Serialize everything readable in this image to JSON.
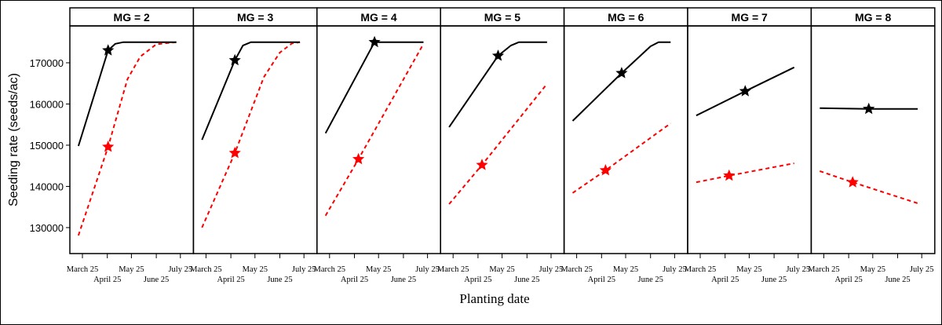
{
  "chart_data": {
    "type": "line",
    "ylabel": "Seeding rate (seeds/ac)",
    "xlabel": "Planting date",
    "ylim": [
      123700,
      178950
    ],
    "yticks": [
      130000,
      140000,
      150000,
      160000,
      170000
    ],
    "ytick_labels": [
      "130000",
      "140000",
      "150000",
      "160000",
      "170000"
    ],
    "xticks": [
      "03-25",
      "04-25",
      "05-25",
      "06-25",
      "07-25"
    ],
    "xtick_labels": [
      "March 25",
      "April 25",
      "May 25",
      "June 25",
      "July 25"
    ],
    "grid": false,
    "colors": {
      "black_series": "#000000",
      "red_series": "#ff0000"
    },
    "panels": [
      {
        "title": "MG = 2",
        "black": {
          "points": [
            [
              "03-20",
              149800
            ],
            [
              "04-26",
              173000
            ],
            [
              "05-05",
              174600
            ],
            [
              "05-15",
              175000
            ],
            [
              "07-20",
              175000
            ]
          ],
          "star": [
            "04-26",
            173000
          ]
        },
        "red": {
          "points": [
            [
              "03-20",
              128100
            ],
            [
              "04-26",
              149600
            ],
            [
              "05-20",
              166000
            ],
            [
              "06-05",
              171500
            ],
            [
              "06-25",
              174500
            ],
            [
              "07-20",
              175000
            ]
          ],
          "star": [
            "04-26",
            149600
          ]
        }
      },
      {
        "title": "MG = 3",
        "black": {
          "points": [
            [
              "03-20",
              151300
            ],
            [
              "04-30",
              170600
            ],
            [
              "05-10",
              174200
            ],
            [
              "05-20",
              175000
            ],
            [
              "07-20",
              175000
            ]
          ],
          "star": [
            "04-30",
            170600
          ]
        },
        "red": {
          "points": [
            [
              "03-20",
              130000
            ],
            [
              "04-30",
              148100
            ],
            [
              "06-05",
              166500
            ],
            [
              "06-25",
              172500
            ],
            [
              "07-10",
              174700
            ],
            [
              "07-20",
              175000
            ]
          ],
          "star": [
            "04-30",
            148100
          ]
        }
      },
      {
        "title": "MG = 4",
        "black": {
          "points": [
            [
              "03-20",
              152900
            ],
            [
              "05-20",
              175000
            ],
            [
              "07-20",
              175000
            ]
          ],
          "star": [
            "05-20",
            175000
          ]
        },
        "red": {
          "points": [
            [
              "03-20",
              132900
            ],
            [
              "04-30",
              146600
            ],
            [
              "07-20",
              174600
            ]
          ],
          "star": [
            "04-30",
            146600
          ]
        }
      },
      {
        "title": "MG = 5",
        "black": {
          "points": [
            [
              "03-20",
              154400
            ],
            [
              "05-20",
              171700
            ],
            [
              "06-05",
              174200
            ],
            [
              "06-15",
              175000
            ],
            [
              "07-20",
              175000
            ]
          ],
          "star": [
            "05-20",
            171700
          ]
        },
        "red": {
          "points": [
            [
              "03-20",
              135700
            ],
            [
              "04-30",
              145200
            ],
            [
              "07-20",
              164900
            ]
          ],
          "star": [
            "04-30",
            145200
          ]
        }
      },
      {
        "title": "MG = 6",
        "black": {
          "points": [
            [
              "03-20",
              155900
            ],
            [
              "05-20",
              167500
            ],
            [
              "06-25",
              174000
            ],
            [
              "07-05",
              175000
            ],
            [
              "07-20",
              175000
            ]
          ],
          "star": [
            "05-20",
            167500
          ]
        },
        "red": {
          "points": [
            [
              "03-20",
              138400
            ],
            [
              "04-30",
              143900
            ],
            [
              "07-20",
              155300
            ]
          ],
          "star": [
            "04-30",
            143900
          ]
        }
      },
      {
        "title": "MG = 7",
        "black": {
          "points": [
            [
              "03-20",
              157200
            ],
            [
              "05-20",
              163100
            ],
            [
              "07-20",
              168900
            ]
          ],
          "star": [
            "05-20",
            163100
          ]
        },
        "red": {
          "points": [
            [
              "03-20",
              141000
            ],
            [
              "04-30",
              142600
            ],
            [
              "07-20",
              145600
            ]
          ],
          "star": [
            "04-30",
            142600
          ]
        }
      },
      {
        "title": "MG = 8",
        "black": {
          "points": [
            [
              "03-20",
              159000
            ],
            [
              "05-20",
              158800
            ],
            [
              "07-20",
              158800
            ]
          ],
          "star": [
            "05-20",
            158800
          ]
        },
        "red": {
          "points": [
            [
              "03-20",
              143700
            ],
            [
              "04-30",
              141000
            ],
            [
              "07-20",
              135900
            ]
          ],
          "star": [
            "04-30",
            141000
          ]
        }
      }
    ]
  }
}
